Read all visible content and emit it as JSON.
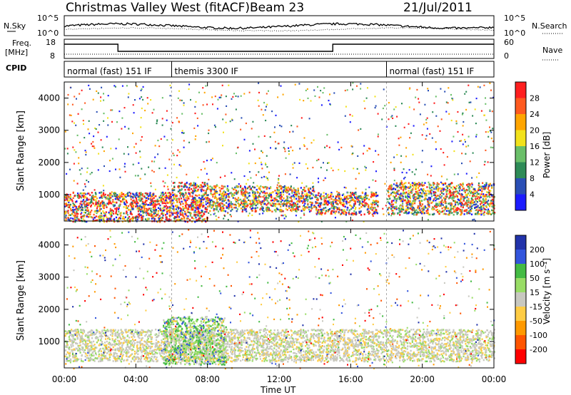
{
  "header": {
    "title": "Christmas Valley West (fitACF)",
    "beam": "Beam 23",
    "date": "21/Jul/2011"
  },
  "top_panels": {
    "nsky_label": "N.Sky",
    "nsky_ticks": [
      "10^5",
      "10^0"
    ],
    "nsearch_label": "N.Search",
    "nsearch_ticks": [
      "10^5",
      "10^0"
    ],
    "freq_label_1": "Freq.",
    "freq_label_2": "[MHz]",
    "freq_ticks": [
      "18",
      "8"
    ],
    "nave_label": "Nave",
    "nave_ticks": [
      "60",
      "0"
    ],
    "cpid_label": "CPID"
  },
  "cpid_segments": [
    {
      "label": "normal (fast) 151 IF",
      "start_hour": 0,
      "end_hour": 6
    },
    {
      "label": "themis 3300 IF",
      "start_hour": 6,
      "end_hour": 18
    },
    {
      "label": "normal (fast) 151 IF",
      "start_hour": 18,
      "end_hour": 24
    }
  ],
  "axes": {
    "y_label": "Slant Range [km]",
    "y_ticks": [
      "1000",
      "2000",
      "3000",
      "4000"
    ],
    "x_label": "Time UT",
    "x_ticks": [
      "00:00",
      "04:00",
      "08:00",
      "12:00",
      "16:00",
      "20:00",
      "00:00"
    ]
  },
  "power_scale": {
    "label": "Power [dB]",
    "ticks": [
      "4",
      "8",
      "12",
      "16",
      "20",
      "24",
      "28"
    ],
    "colors": [
      "#1c1cff",
      "#2a4fb5",
      "#2e8b57",
      "#6abf69",
      "#f2e21c",
      "#ffa500",
      "#ff5a1f",
      "#ff1f1f"
    ]
  },
  "velocity_scale": {
    "label": "Velocity [m s⁻¹]",
    "ticks": [
      "200",
      "100",
      "50",
      "15",
      "-15",
      "-50",
      "-100",
      "-200"
    ],
    "colors": [
      "#2233aa",
      "#3355dd",
      "#44bb44",
      "#99dd66",
      "#c8c8c0",
      "#ffcc44",
      "#ff9900",
      "#ff5500",
      "#ff0000"
    ]
  },
  "chart_data": {
    "type": "heatmap",
    "x_range_hours": [
      0,
      24
    ],
    "y_range_km": [
      180,
      4500
    ],
    "power_echo_bands": [
      {
        "t0": 0.0,
        "t1": 6.0,
        "r0": 180,
        "r1": 1100,
        "level": "high"
      },
      {
        "t0": 6.0,
        "t1": 8.0,
        "r0": 180,
        "r1": 1400,
        "level": "high"
      },
      {
        "t0": 8.0,
        "t1": 14.0,
        "r0": 500,
        "r1": 1300,
        "level": "medium"
      },
      {
        "t0": 14.0,
        "t1": 17.5,
        "r0": 400,
        "r1": 1100,
        "level": "high"
      },
      {
        "t0": 18.0,
        "t1": 24.0,
        "r0": 400,
        "r1": 1400,
        "level": "medium"
      }
    ],
    "velocity_echo_bands": [
      {
        "t0": 0.0,
        "t1": 24.0,
        "r0": 400,
        "r1": 1400,
        "level": "near-zero"
      },
      {
        "t0": 5.5,
        "t1": 9.0,
        "r0": 300,
        "r1": 1800,
        "level": "positive"
      }
    ]
  }
}
